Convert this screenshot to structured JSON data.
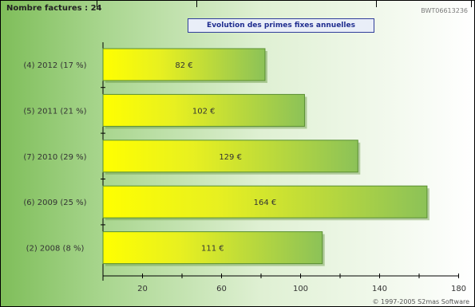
{
  "header": {
    "count": "Nombre factures : 24",
    "ref": "BWT06613236",
    "title": "Evolution des primes fixes annuelles"
  },
  "footer": {
    "copyright": "© 1997-2005 S2mas Software"
  },
  "chart_data": {
    "type": "bar",
    "orientation": "horizontal",
    "title": "Evolution des primes fixes annuelles",
    "categories": [
      "(4) 2012 (17 %)",
      "(5) 2011 (21 %)",
      "(7) 2010 (29 %)",
      "(6) 2009 (25 %)",
      "(2) 2008 (8 %)"
    ],
    "values": [
      82,
      102,
      129,
      164,
      111
    ],
    "value_labels": [
      "82 €",
      "102 €",
      "129 €",
      "164 €",
      "111 €"
    ],
    "xticks": [
      "20",
      "60",
      "100",
      "140",
      "180"
    ],
    "xlim": [
      0,
      180
    ],
    "grid": false,
    "colors": {
      "bar_start": "#ffff00",
      "bar_end": "#8cc258",
      "bar_border": "#5a8f32"
    }
  }
}
